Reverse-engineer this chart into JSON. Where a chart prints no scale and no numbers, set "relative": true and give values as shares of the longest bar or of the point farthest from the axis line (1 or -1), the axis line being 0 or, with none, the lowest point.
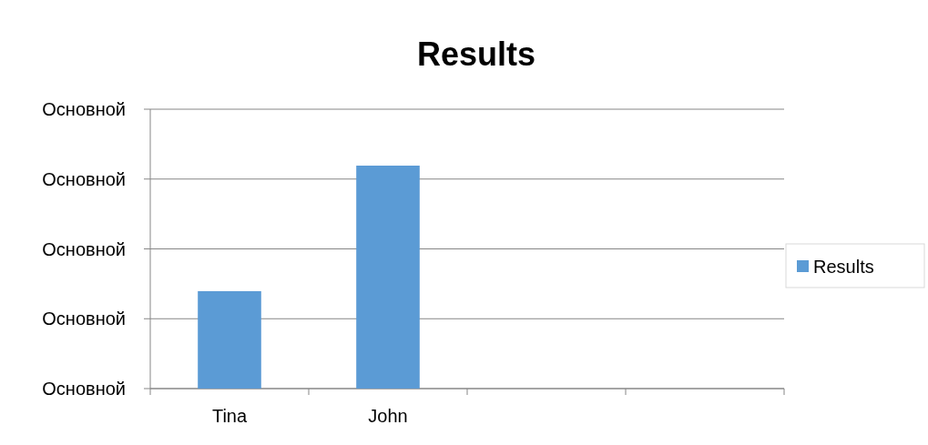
{
  "chart_data": {
    "type": "bar",
    "title": "Results",
    "relative": true,
    "categories": [
      "Tina",
      "John",
      null,
      null
    ],
    "series": [
      {
        "name": "Results",
        "color": "#5b9bd5",
        "values": [
          0.437,
          1,
          null,
          null
        ]
      }
    ],
    "annotations": [
      "Основной",
      "Основной",
      "Основной",
      "Основной",
      "Основной"
    ],
    "grid": "y",
    "legend": "right"
  }
}
